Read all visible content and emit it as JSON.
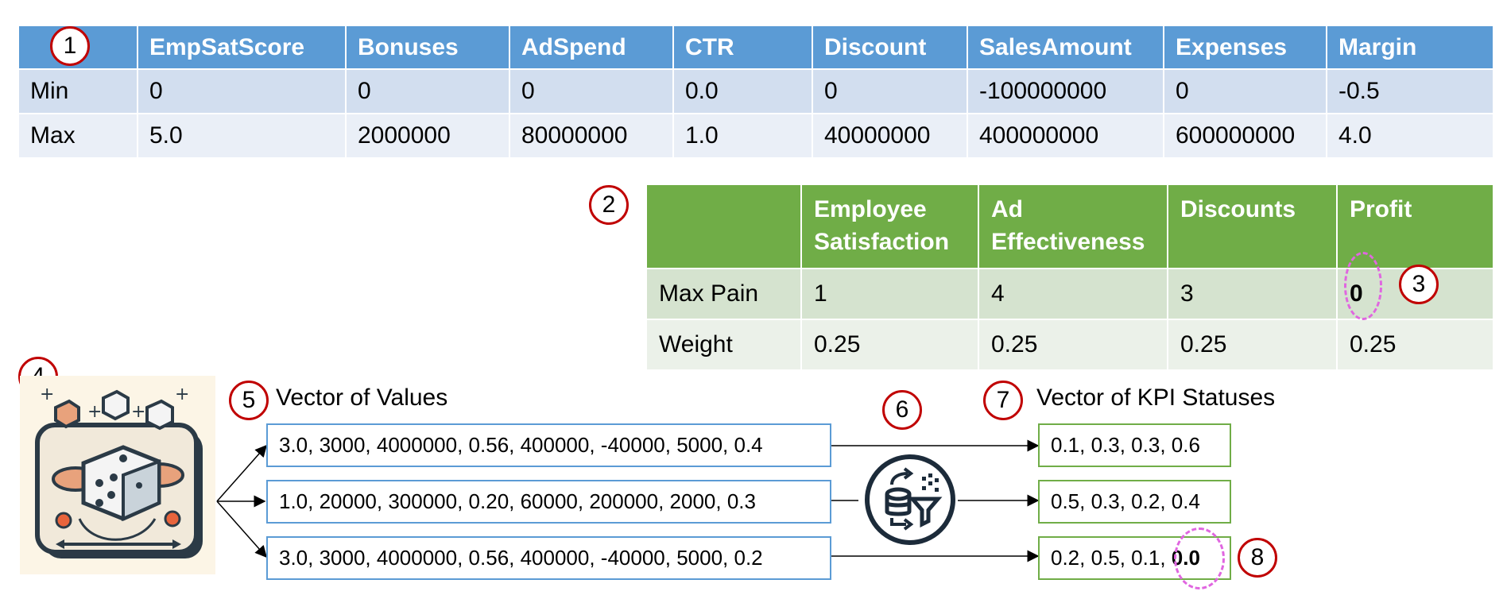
{
  "table1": {
    "headers": [
      "EmpSatScore",
      "Bonuses",
      "AdSpend",
      "CTR",
      "Discount",
      "SalesAmount",
      "Expenses",
      "Margin"
    ],
    "rows": [
      {
        "label": "Min",
        "values": [
          "0",
          "0",
          "0",
          "0.0",
          "0",
          "-100000000",
          "0",
          "-0.5"
        ]
      },
      {
        "label": "Max",
        "values": [
          "5.0",
          "2000000",
          "80000000",
          "1.0",
          "40000000",
          "400000000",
          "600000000",
          "4.0"
        ]
      }
    ]
  },
  "table2": {
    "headers": [
      "Employee Satisfaction",
      "Ad Effectiveness",
      "Discounts",
      "Profit"
    ],
    "rows": [
      {
        "label": "Max Pain",
        "values": [
          "1",
          "4",
          "3",
          "0"
        ]
      },
      {
        "label": "Weight",
        "values": [
          "0.25",
          "0.25",
          "0.25",
          "0.25"
        ]
      }
    ]
  },
  "badges": [
    "1",
    "2",
    "3",
    "4",
    "5",
    "6",
    "7",
    "8"
  ],
  "values_title": "Vector of Values",
  "kpi_title": "Vector of KPI Statuses",
  "value_vectors": [
    "3.0, 3000, 4000000, 0.56, 400000, -40000, 5000, 0.4",
    "1.0, 20000, 300000, 0.20, 60000, 200000, 2000, 0.3",
    "3.0, 3000, 4000000, 0.56, 400000, -40000, 5000, 0.2"
  ],
  "kpi_vectors": [
    "0.1, 0.3, 0.3, 0.6",
    "0.5, 0.3, 0.2, 0.4"
  ],
  "kpi_vector3": {
    "prefix": "0.2, 0.5, 0.1, ",
    "highlight": "0.0"
  },
  "colors": {
    "blue_header": "#5b9bd5",
    "green_header": "#70ad47",
    "badge_border": "#c00000",
    "highlight_dash": "#e066e0"
  }
}
